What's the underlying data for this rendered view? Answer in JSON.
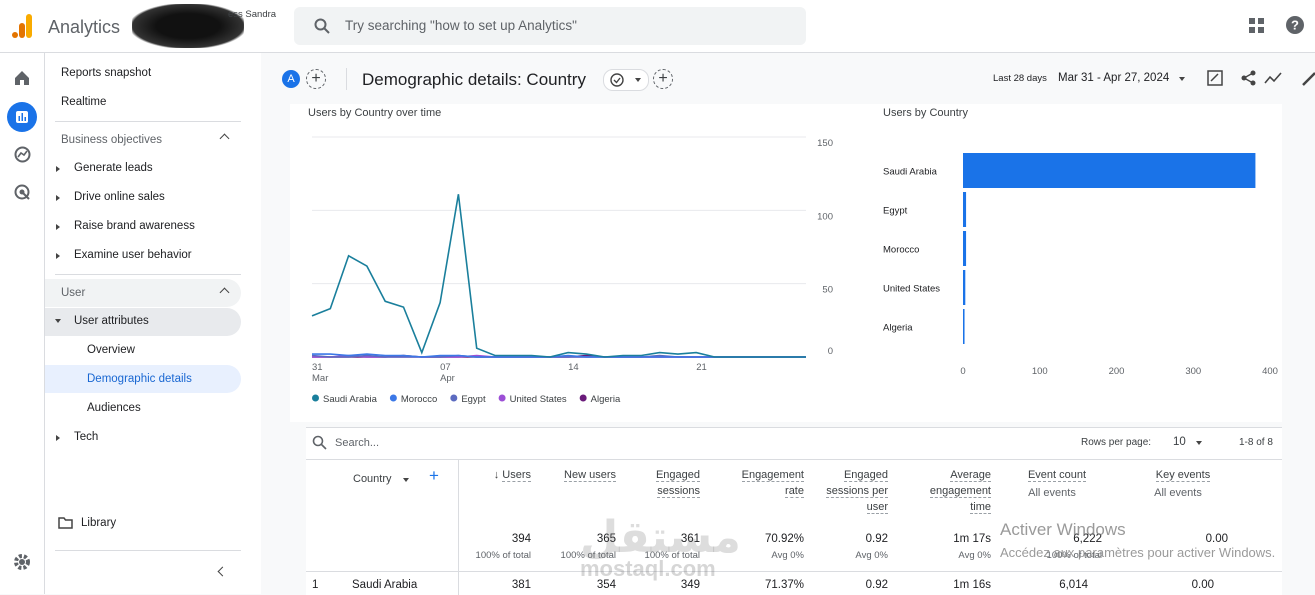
{
  "header": {
    "product": "Analytics",
    "account": "ess Sandra",
    "search_placeholder": "Try searching \"how to set up Analytics\""
  },
  "sidebar": {
    "items": [
      "Reports snapshot",
      "Realtime"
    ],
    "sections": [
      {
        "title": "Business objectives",
        "items": [
          "Generate leads",
          "Drive online sales",
          "Raise brand awareness",
          "Examine user behavior"
        ]
      },
      {
        "title": "User",
        "items": [
          "User attributes",
          "Tech"
        ],
        "children": [
          "Overview",
          "Demographic details",
          "Audiences"
        ]
      }
    ],
    "library": "Library"
  },
  "toolbar": {
    "avatar": "A",
    "title": "Demographic details: Country",
    "range_label": "Last 28 days",
    "range": "Mar 31 - Apr 27, 2024"
  },
  "chart_data": [
    {
      "type": "line",
      "title": "Users by Country over time",
      "categories": [
        "31 Mar",
        null,
        null,
        null,
        null,
        null,
        null,
        "07 Apr",
        null,
        null,
        null,
        null,
        null,
        null,
        "14",
        null,
        null,
        null,
        null,
        null,
        null,
        "21",
        null,
        null,
        null,
        null,
        null,
        null
      ],
      "series": [
        {
          "name": "Saudi Arabia",
          "color": "#1a7f9c",
          "values": [
            28,
            33,
            69,
            62,
            38,
            34,
            3,
            37,
            111,
            6,
            1,
            1,
            1,
            0,
            3,
            2,
            0,
            1,
            1,
            3,
            2,
            3,
            0,
            0,
            0,
            0,
            0,
            0
          ]
        },
        {
          "name": "Morocco",
          "color": "#3b78e7",
          "values": [
            2,
            2,
            1,
            2,
            1,
            1,
            0,
            1,
            1,
            0,
            0,
            0,
            0,
            0,
            1,
            0,
            0,
            0,
            0,
            0,
            0,
            0,
            0,
            0,
            0,
            0,
            0,
            0
          ]
        },
        {
          "name": "Egypt",
          "color": "#5c6bc0",
          "values": [
            1,
            0,
            0,
            1,
            0,
            0,
            0,
            0,
            1,
            0,
            0,
            0,
            0,
            0,
            0,
            0,
            0,
            0,
            0,
            1,
            0,
            0,
            0,
            0,
            0,
            0,
            0,
            0
          ]
        },
        {
          "name": "United States",
          "color": "#9c4fd6",
          "values": [
            0,
            0,
            1,
            0,
            0,
            0,
            0,
            0,
            0,
            1,
            0,
            0,
            0,
            0,
            0,
            0,
            0,
            0,
            0,
            0,
            0,
            0,
            0,
            0,
            0,
            0,
            0,
            0
          ]
        },
        {
          "name": "Algeria",
          "color": "#6a1b7a",
          "values": [
            0,
            0,
            0,
            0,
            0,
            1,
            0,
            0,
            0,
            0,
            0,
            0,
            0,
            0,
            0,
            1,
            0,
            0,
            0,
            0,
            0,
            0,
            0,
            0,
            0,
            0,
            0,
            0
          ]
        }
      ],
      "ylim": [
        0,
        150
      ],
      "yticks": [
        0,
        50,
        100,
        150
      ],
      "grid": true,
      "legend": "bottom"
    },
    {
      "type": "hbar",
      "title": "Users by Country",
      "categories": [
        "Saudi Arabia",
        "Egypt",
        "Morocco",
        "United States",
        "Algeria"
      ],
      "values": [
        381,
        4,
        4,
        3,
        2
      ],
      "color": "#1a73e8",
      "xlim": [
        0,
        400
      ],
      "xticks": [
        0,
        100,
        200,
        300,
        400
      ],
      "grid": false
    }
  ],
  "table": {
    "search": "Search...",
    "rows_per_page_label": "Rows per page:",
    "rows_per_page": "10",
    "pagination": "1-8 of 8",
    "dimension": "Country",
    "columns": [
      {
        "header": "Users",
        "total": "394",
        "total_note": "100% of total"
      },
      {
        "header": "New users",
        "total": "365",
        "total_note": "100% of total"
      },
      {
        "header": "Engaged sessions",
        "total": "361",
        "total_note": "100% of total"
      },
      {
        "header": "Engagement rate",
        "total": "70.92%",
        "total_note": "Avg 0%"
      },
      {
        "header": "Engaged sessions per user",
        "total": "0.92",
        "total_note": "Avg 0%"
      },
      {
        "header": "Average engagement time",
        "total": "1m 17s",
        "total_note": "Avg 0%"
      },
      {
        "header": "Event count",
        "subheader": "All events",
        "total": "6,222",
        "total_note": "100% of total"
      },
      {
        "header": "Key events",
        "subheader": "All events",
        "total": "0.00"
      }
    ],
    "rows": [
      [
        "1",
        "Saudi Arabia",
        "381",
        "354",
        "349",
        "71.37%",
        "0.92",
        "1m 16s",
        "6,014",
        "0.00"
      ]
    ]
  },
  "watermark": {
    "title": "Activer Windows",
    "text": "Accédez aux paramètres pour activer Windows.",
    "site": "mostaql.com"
  }
}
